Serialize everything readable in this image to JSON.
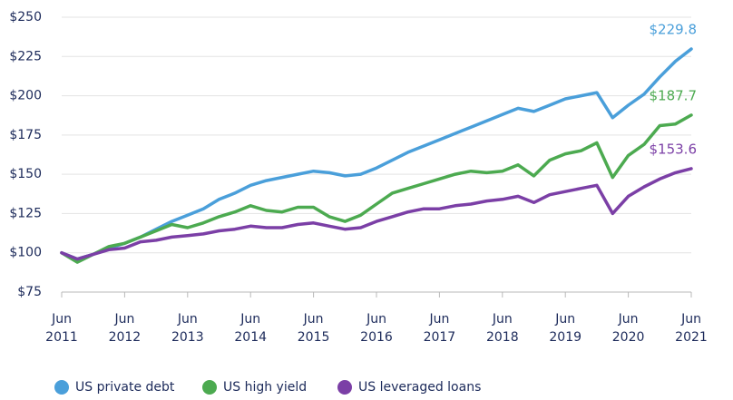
{
  "chart_data": {
    "type": "line",
    "categories": [
      "Jun 2011",
      null,
      null,
      null,
      "Jun 2012",
      null,
      null,
      null,
      "Jun 2013",
      null,
      null,
      null,
      "Jun 2014",
      null,
      null,
      null,
      "Jun 2015",
      null,
      null,
      null,
      "Jun 2016",
      null,
      null,
      null,
      "Jun 2017",
      null,
      null,
      null,
      "Jun 2018",
      null,
      null,
      null,
      "Jun 2019",
      null,
      null,
      null,
      "Jun 2020",
      null,
      null,
      null,
      "Jun 2021"
    ],
    "series": [
      {
        "name": "US private debt",
        "color": "#4a9fda",
        "values": [
          100,
          96,
          99,
          103,
          106,
          110,
          115,
          120,
          124,
          128,
          134,
          138,
          143,
          146,
          148,
          150,
          152,
          151,
          149,
          150,
          154,
          159,
          164,
          168,
          172,
          176,
          180,
          184,
          188,
          192,
          190,
          194,
          198,
          200,
          202,
          186,
          194,
          201,
          212,
          222,
          229.8
        ],
        "value_labels": [
          null,
          null,
          null,
          null,
          null,
          null,
          null,
          null,
          null,
          null,
          null,
          null,
          null,
          null,
          null,
          null,
          null,
          null,
          null,
          null,
          null,
          null,
          null,
          null,
          null,
          null,
          null,
          null,
          null,
          null,
          null,
          null,
          null,
          null,
          null,
          null,
          null,
          null,
          null,
          null,
          "$229.8"
        ]
      },
      {
        "name": "US high yield",
        "color": "#4caa50",
        "values": [
          100,
          94,
          99,
          104,
          106,
          110,
          114,
          118,
          116,
          119,
          123,
          126,
          130,
          127,
          126,
          129,
          129,
          123,
          120,
          124,
          131,
          138,
          141,
          144,
          147,
          150,
          152,
          151,
          152,
          156,
          149,
          159,
          163,
          165,
          170,
          148,
          162,
          169,
          181,
          182,
          187.7
        ],
        "value_labels": [
          null,
          null,
          null,
          null,
          null,
          null,
          null,
          null,
          null,
          null,
          null,
          null,
          null,
          null,
          null,
          null,
          null,
          null,
          null,
          null,
          null,
          null,
          null,
          null,
          null,
          null,
          null,
          null,
          null,
          null,
          null,
          null,
          null,
          null,
          null,
          null,
          null,
          null,
          null,
          null,
          "$187.7"
        ]
      },
      {
        "name": "US leveraged loans",
        "color": "#7b3fa6",
        "values": [
          100,
          96,
          99,
          102,
          103,
          107,
          108,
          110,
          111,
          112,
          114,
          115,
          117,
          116,
          116,
          118,
          119,
          117,
          115,
          116,
          120,
          123,
          126,
          128,
          128,
          130,
          131,
          133,
          134,
          136,
          132,
          137,
          139,
          141,
          143,
          125,
          136,
          142,
          147,
          151,
          153.6
        ],
        "value_labels": [
          null,
          null,
          null,
          null,
          null,
          null,
          null,
          null,
          null,
          null,
          null,
          null,
          null,
          null,
          null,
          null,
          null,
          null,
          null,
          null,
          null,
          null,
          null,
          null,
          null,
          null,
          null,
          null,
          null,
          null,
          null,
          null,
          null,
          null,
          null,
          null,
          null,
          null,
          null,
          null,
          "$153.6"
        ]
      }
    ],
    "ylim": [
      75,
      250
    ],
    "yticks": [
      {
        "value": 75,
        "label": "$75"
      },
      {
        "value": 100,
        "label": "$100"
      },
      {
        "value": 125,
        "label": "$125"
      },
      {
        "value": 150,
        "label": "$150"
      },
      {
        "value": 175,
        "label": "$175"
      },
      {
        "value": 200,
        "label": "$200"
      },
      {
        "value": 225,
        "label": "$225"
      },
      {
        "value": 250,
        "label": "$250"
      }
    ],
    "grid": true,
    "legend": "bottom"
  }
}
